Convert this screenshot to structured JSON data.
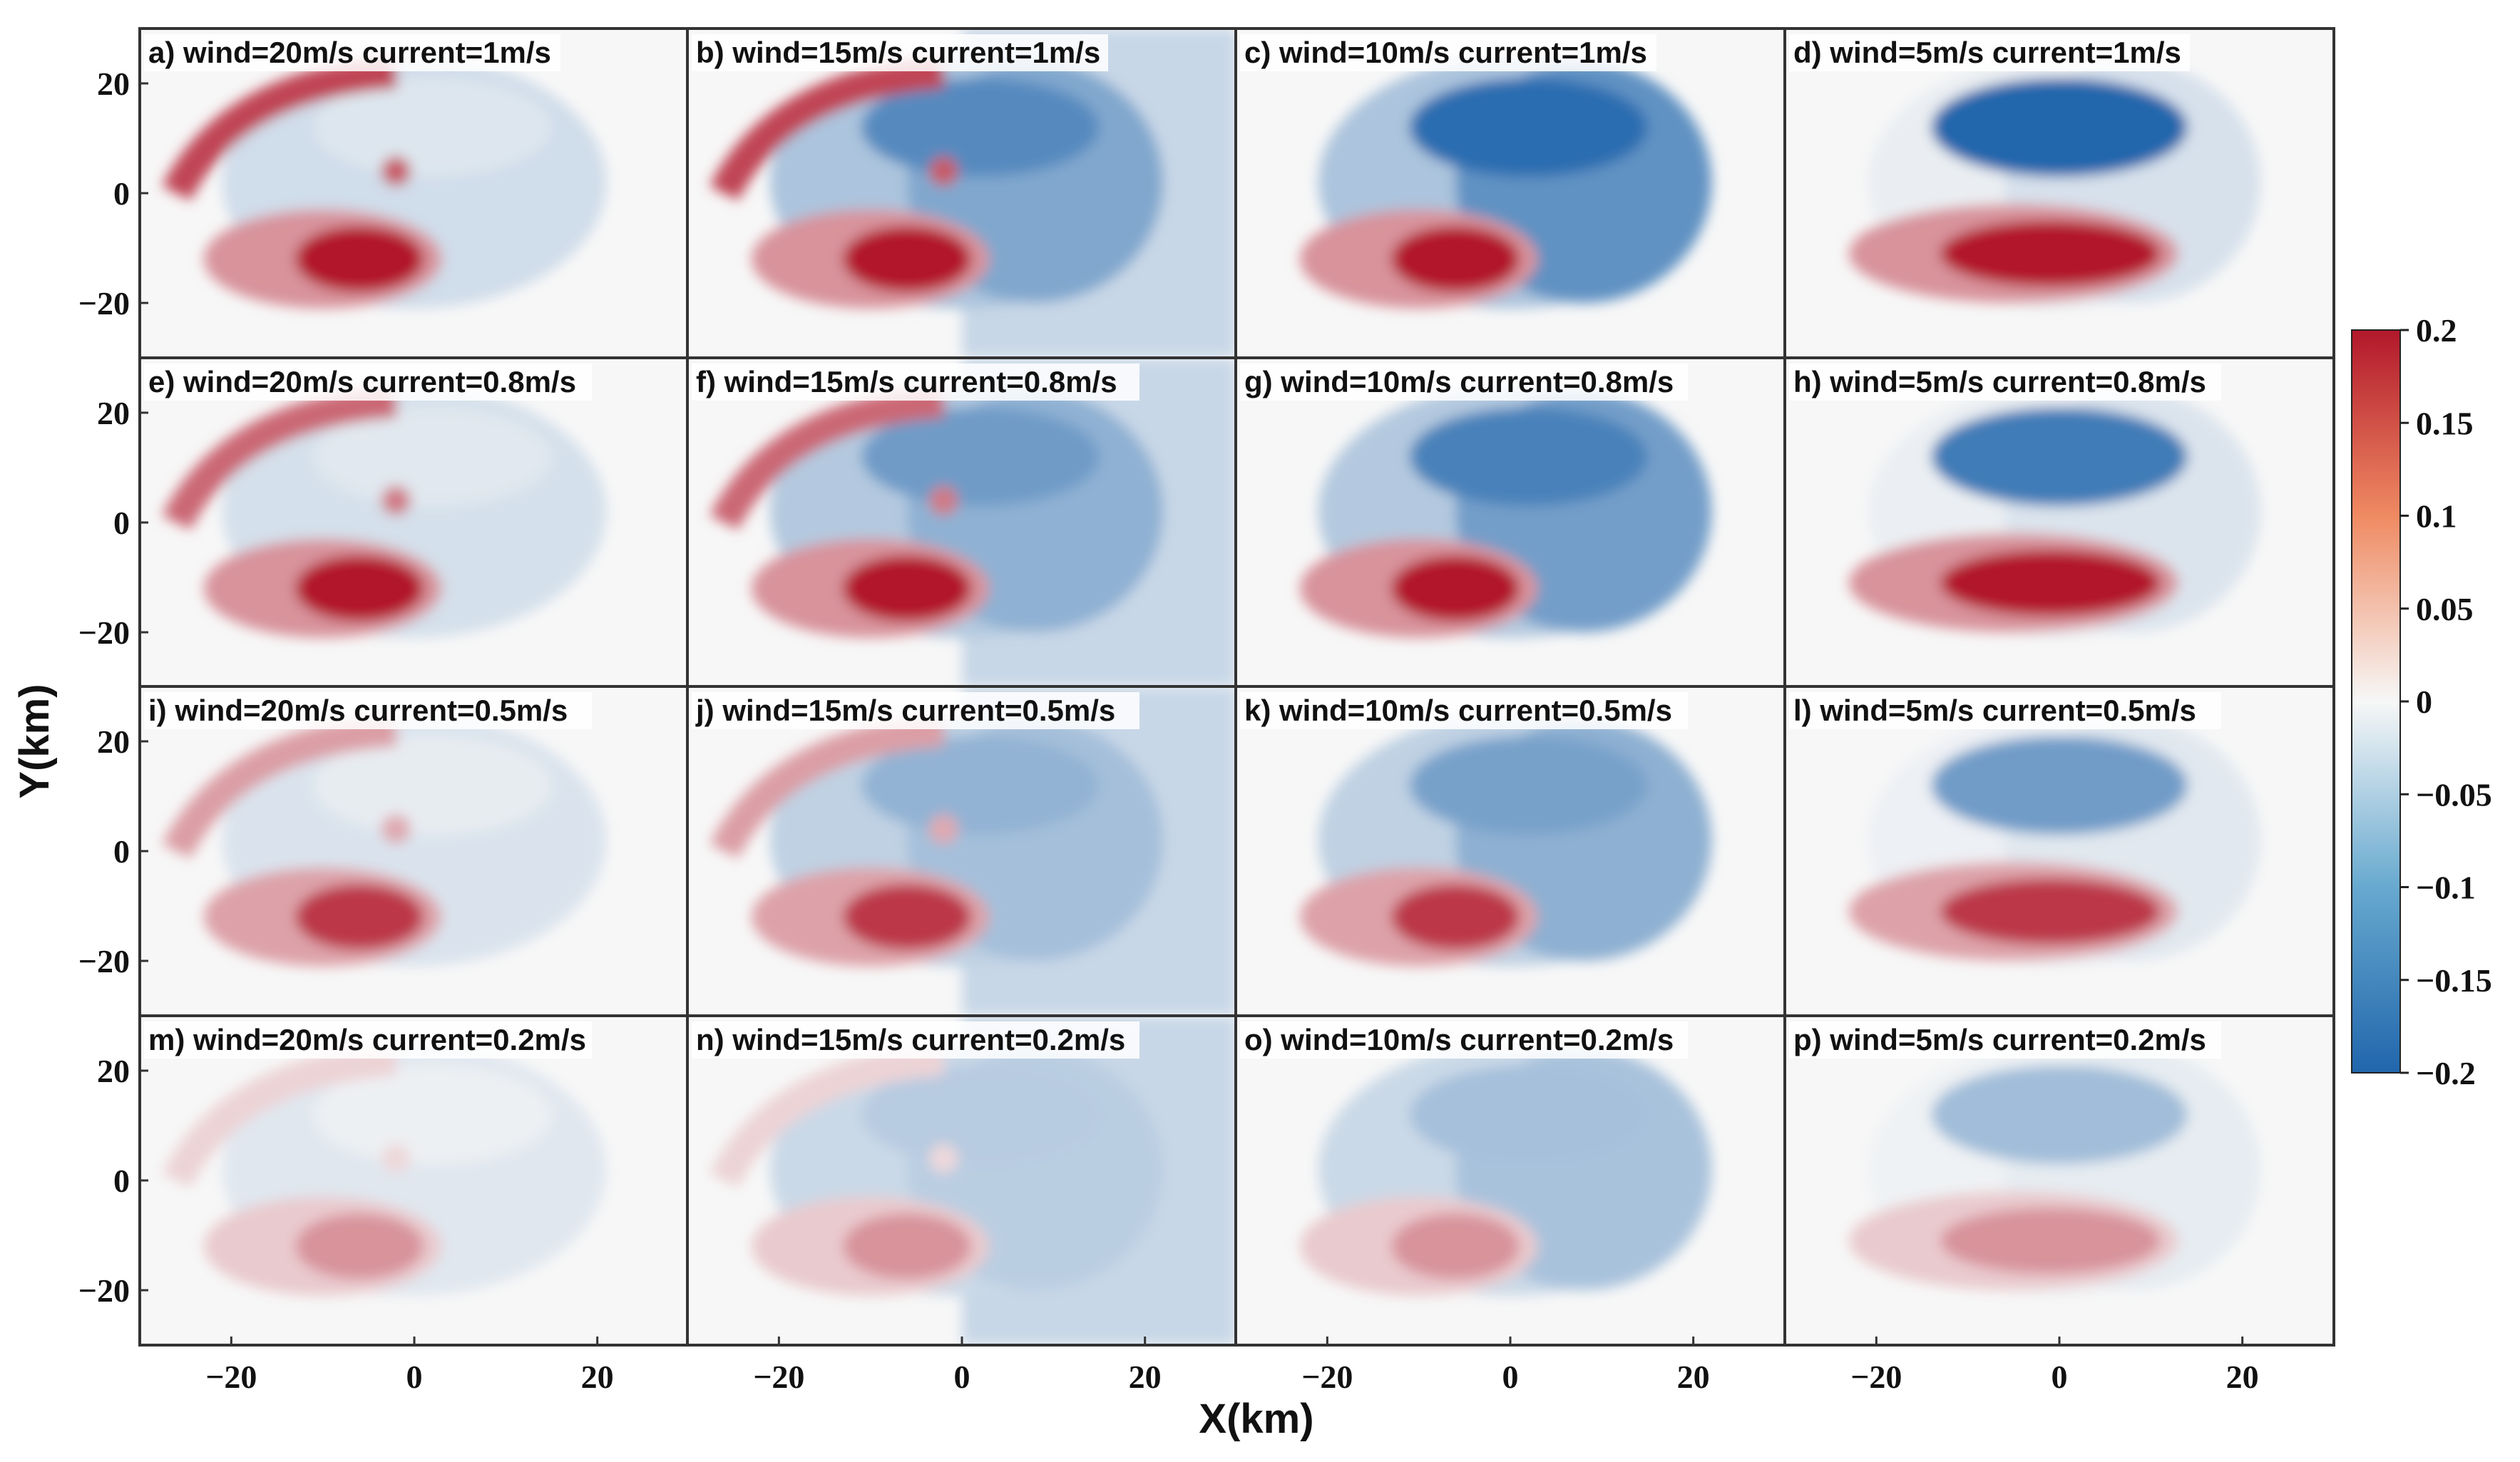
{
  "chart_data": {
    "type": "heatmap",
    "xlabel": "X(km)",
    "ylabel": "Y(km)",
    "xlim": [
      -30,
      30
    ],
    "ylim": [
      -30,
      30
    ],
    "xticks": [
      -20,
      0,
      20
    ],
    "yticks": [
      20,
      0,
      -20
    ],
    "xtick_labels": [
      "−20",
      "0",
      "20"
    ],
    "ytick_labels": [
      "20",
      "0",
      "−20"
    ],
    "colorbar": {
      "range": [
        -0.2,
        0.2
      ],
      "ticks": [
        0.2,
        0.15,
        0.1,
        0.05,
        0,
        -0.05,
        -0.1,
        -0.15,
        -0.2
      ],
      "tick_labels": [
        "0.2",
        "0.15",
        "0.1",
        "0.05",
        "0",
        "−0.05",
        "−0.1",
        "−0.15",
        "−0.2"
      ],
      "colormap": "red-white-blue",
      "high_color": "#b2182b",
      "mid_color": "#f7f7f7",
      "low_color": "#2166ac"
    },
    "winds": [
      20,
      15,
      10,
      5
    ],
    "currents": [
      1,
      0.8,
      0.5,
      0.2
    ],
    "panels": [
      {
        "label": "a) wind=20m/s current=1m/s",
        "wind": 20,
        "current": 1
      },
      {
        "label": "b) wind=15m/s current=1m/s",
        "wind": 15,
        "current": 1
      },
      {
        "label": "c) wind=10m/s current=1m/s",
        "wind": 10,
        "current": 1
      },
      {
        "label": "d) wind=5m/s current=1m/s",
        "wind": 5,
        "current": 1
      },
      {
        "label": "e) wind=20m/s current=0.8m/s",
        "wind": 20,
        "current": 0.8
      },
      {
        "label": "f) wind=15m/s current=0.8m/s",
        "wind": 15,
        "current": 0.8
      },
      {
        "label": "g) wind=10m/s current=0.8m/s",
        "wind": 10,
        "current": 0.8
      },
      {
        "label": "h) wind=5m/s current=0.8m/s",
        "wind": 5,
        "current": 0.8
      },
      {
        "label": "i) wind=20m/s current=0.5m/s",
        "wind": 20,
        "current": 0.5
      },
      {
        "label": "j) wind=15m/s current=0.5m/s",
        "wind": 15,
        "current": 0.5
      },
      {
        "label": "k) wind=10m/s current=0.5m/s",
        "wind": 10,
        "current": 0.5
      },
      {
        "label": "l) wind=5m/s current=0.5m/s",
        "wind": 5,
        "current": 0.5
      },
      {
        "label": "m) wind=20m/s current=0.2m/s",
        "wind": 20,
        "current": 0.2
      },
      {
        "label": "n) wind=15m/s current=0.2m/s",
        "wind": 15,
        "current": 0.2
      },
      {
        "label": "o) wind=10m/s current=0.2m/s",
        "wind": 10,
        "current": 0.2
      },
      {
        "label": "p) wind=5m/s current=0.2m/s",
        "wind": 5,
        "current": 0.2
      }
    ]
  }
}
